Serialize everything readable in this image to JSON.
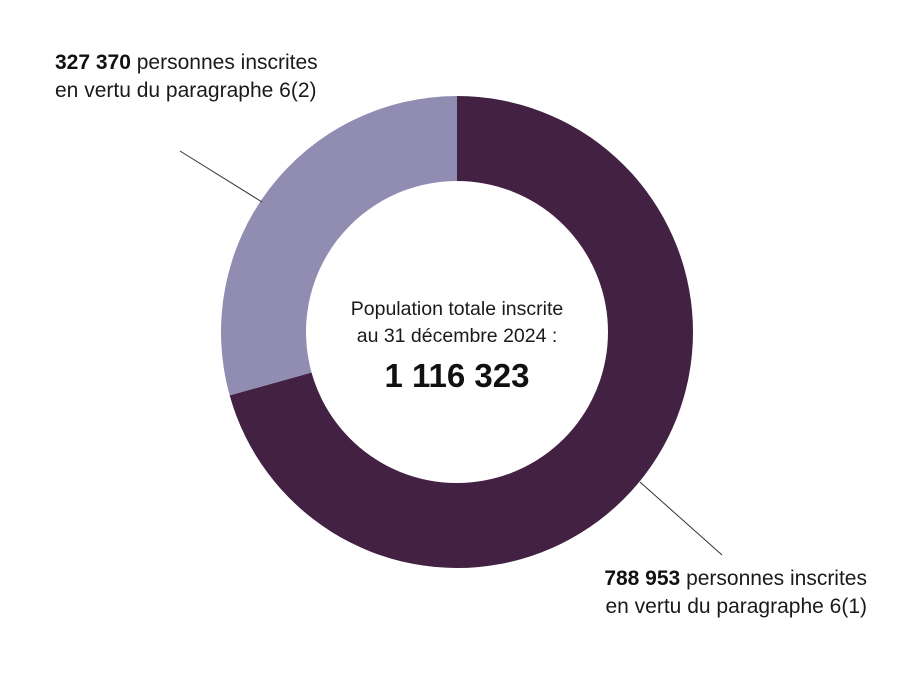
{
  "chart_data": {
    "type": "pie",
    "subtype": "donut",
    "title": "Population totale inscrite au 31 décembre 2024 : 1 116 323",
    "total": 1116323,
    "categories": [
      "Personnes inscrites en vertu du paragraphe 6(1)",
      "Personnes inscrites en vertu du paragraphe 6(2)"
    ],
    "values": [
      788953,
      327370
    ],
    "colors": [
      "#432142",
      "#918db2"
    ],
    "percentages": [
      70.67,
      29.33
    ],
    "legend_position": "callout labels"
  },
  "center": {
    "line1": "Population totale inscrite",
    "line2": "au 31 décembre 2024 :",
    "total": "1 116 323"
  },
  "labels": {
    "para62": {
      "value": "327 370",
      "text1": " personnes inscrites",
      "text2": "en vertu du paragraphe 6(2)"
    },
    "para61": {
      "value": "788 953",
      "text1": " personnes inscrites",
      "text2": "en vertu du paragraphe 6(1)"
    }
  },
  "colors": {
    "dark": "#432142",
    "light": "#918db2",
    "leader": "#333333"
  }
}
